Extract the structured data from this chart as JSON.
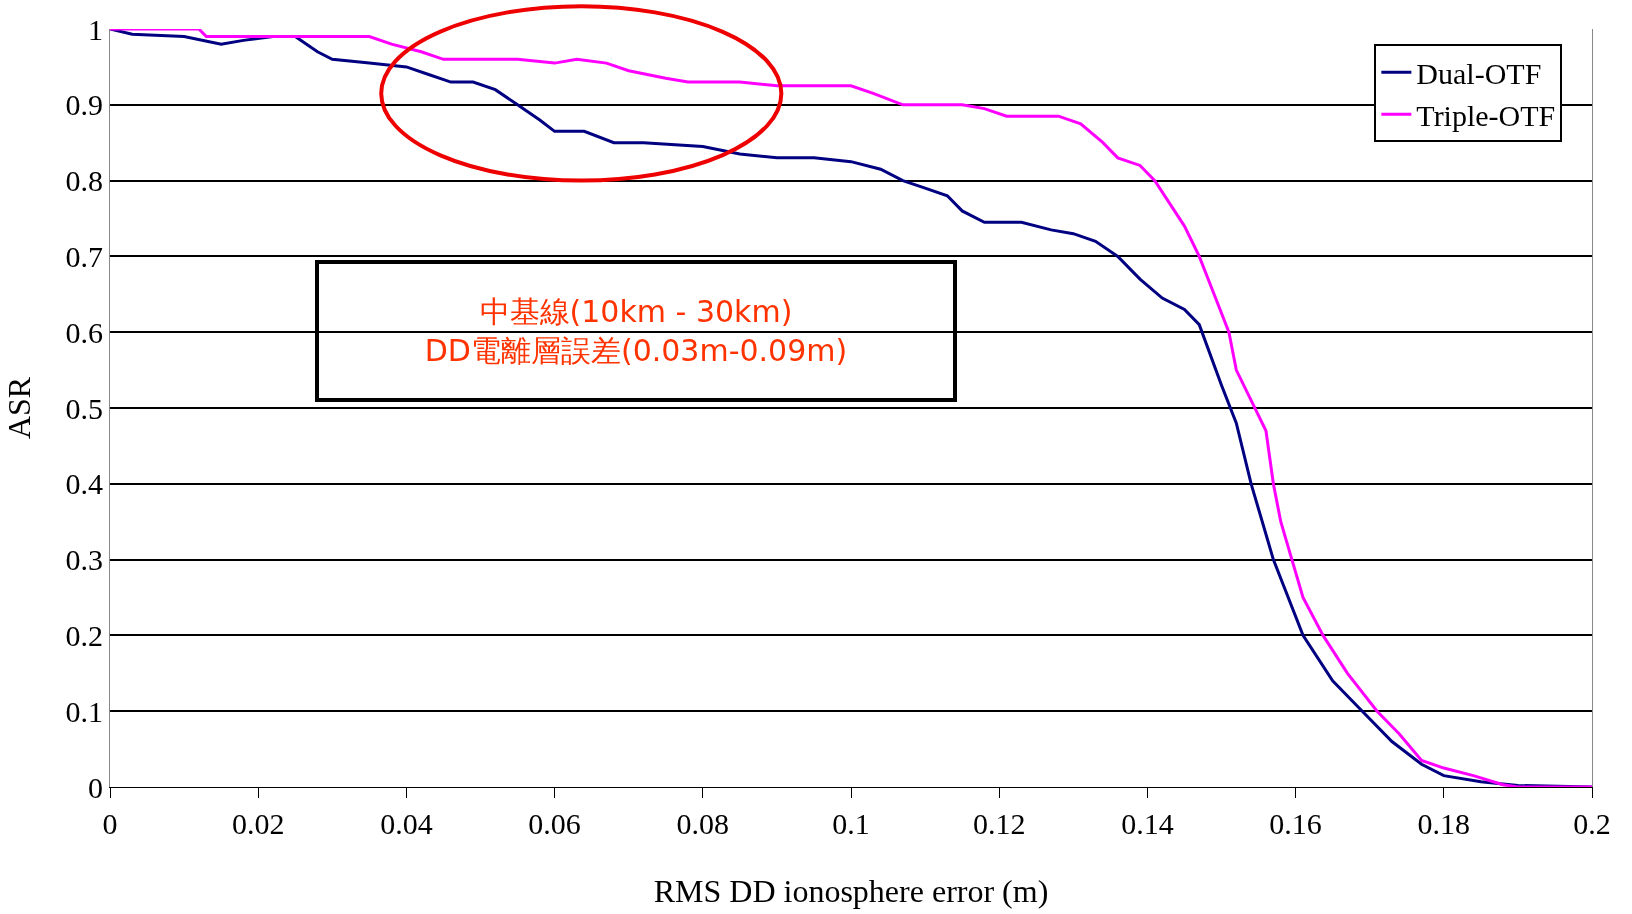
{
  "chart_data": {
    "type": "line",
    "xlabel": "RMS DD ionosphere error (m)",
    "ylabel": "ASR",
    "xlim": [
      0,
      0.2
    ],
    "xticks": [
      0,
      0.02,
      0.04,
      0.06,
      0.08,
      0.1,
      0.12,
      0.14,
      0.16,
      0.18,
      0.2
    ],
    "ylim": [
      0,
      1
    ],
    "yticks": [
      0,
      0.1,
      0.2,
      0.3,
      0.4,
      0.5,
      0.6,
      0.7,
      0.8,
      0.9,
      1
    ],
    "grid": "y",
    "legend": "top right",
    "marker": "none",
    "line_style": "solid",
    "annotations": [
      "中基線(10km - 30km)\nDD電離層誤差(0.03m-0.09m)"
    ],
    "series": [
      {
        "name": "Dual-OTF",
        "color": "#000080",
        "x": [
          0,
          0.003,
          0.01,
          0.015,
          0.018,
          0.022,
          0.025,
          0.028,
          0.03,
          0.035,
          0.04,
          0.043,
          0.046,
          0.049,
          0.052,
          0.055,
          0.058,
          0.06,
          0.064,
          0.068,
          0.072,
          0.08,
          0.085,
          0.09,
          0.095,
          0.1,
          0.104,
          0.107,
          0.11,
          0.113,
          0.115,
          0.118,
          0.123,
          0.127,
          0.13,
          0.133,
          0.136,
          0.139,
          0.142,
          0.145,
          0.147,
          0.15,
          0.152,
          0.154,
          0.157,
          0.161,
          0.165,
          0.169,
          0.173,
          0.177,
          0.18,
          0.185,
          0.19,
          0.2
        ],
        "values": [
          1.0,
          0.993,
          0.99,
          0.98,
          0.985,
          0.99,
          0.99,
          0.97,
          0.96,
          0.955,
          0.95,
          0.94,
          0.93,
          0.93,
          0.92,
          0.9,
          0.88,
          0.865,
          0.865,
          0.85,
          0.85,
          0.845,
          0.835,
          0.83,
          0.83,
          0.825,
          0.815,
          0.8,
          0.79,
          0.78,
          0.76,
          0.745,
          0.745,
          0.735,
          0.73,
          0.72,
          0.7,
          0.67,
          0.645,
          0.63,
          0.61,
          0.53,
          0.48,
          0.4,
          0.3,
          0.2,
          0.14,
          0.1,
          0.06,
          0.03,
          0.015,
          0.007,
          0.002,
          0
        ]
      },
      {
        "name": "Triple-OTF",
        "color": "#ff00ff",
        "x": [
          0,
          0.012,
          0.013,
          0.035,
          0.038,
          0.042,
          0.045,
          0.055,
          0.06,
          0.063,
          0.067,
          0.07,
          0.075,
          0.078,
          0.085,
          0.09,
          0.1,
          0.103,
          0.107,
          0.115,
          0.118,
          0.121,
          0.128,
          0.131,
          0.134,
          0.136,
          0.139,
          0.141,
          0.143,
          0.145,
          0.147,
          0.149,
          0.151,
          0.152,
          0.154,
          0.156,
          0.157,
          0.158,
          0.1595,
          0.161,
          0.1637,
          0.167,
          0.171,
          0.174,
          0.177,
          0.18,
          0.184,
          0.188,
          0.19,
          0.2
        ],
        "values": [
          1.0,
          1.0,
          0.99,
          0.99,
          0.98,
          0.97,
          0.96,
          0.96,
          0.955,
          0.96,
          0.955,
          0.945,
          0.935,
          0.93,
          0.93,
          0.925,
          0.925,
          0.915,
          0.9,
          0.9,
          0.895,
          0.885,
          0.885,
          0.875,
          0.85,
          0.83,
          0.82,
          0.8,
          0.77,
          0.74,
          0.7,
          0.65,
          0.6,
          0.55,
          0.51,
          0.47,
          0.4,
          0.35,
          0.3,
          0.25,
          0.2,
          0.15,
          0.1,
          0.07,
          0.035,
          0.025,
          0.015,
          0.003,
          0,
          0
        ]
      }
    ]
  }
}
